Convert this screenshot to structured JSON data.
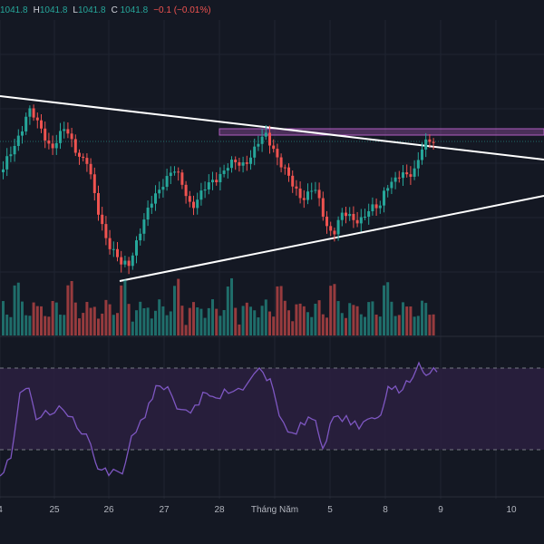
{
  "ohlc": {
    "o_value": "1041.8",
    "h_label": "H",
    "h_value": "1041.8",
    "l_label": "L",
    "l_value": "1041.8",
    "c_label": "C",
    "c_value": "1041.8",
    "change": "−0.1 (−0.01%)"
  },
  "time_axis": {
    "labels": [
      "4",
      "25",
      "26",
      "27",
      "28",
      "Tháng Năm",
      "5",
      "8",
      "9",
      "10"
    ]
  },
  "colors": {
    "background": "#141823",
    "up": "#26a69a",
    "down": "#ef5350",
    "trendline": "#ffffff",
    "resistance_zone": "#b05cc0",
    "rsi_line": "#7e57c2",
    "rsi_band": "#2a2040"
  },
  "chart_data": {
    "type": "candlestick",
    "trendlines": [
      "descending-resistance",
      "ascending-support"
    ],
    "resistance_zone": true,
    "volume_panel": true,
    "rsi_panel": true,
    "rsi_band_lines": "dashed",
    "grid": true
  }
}
